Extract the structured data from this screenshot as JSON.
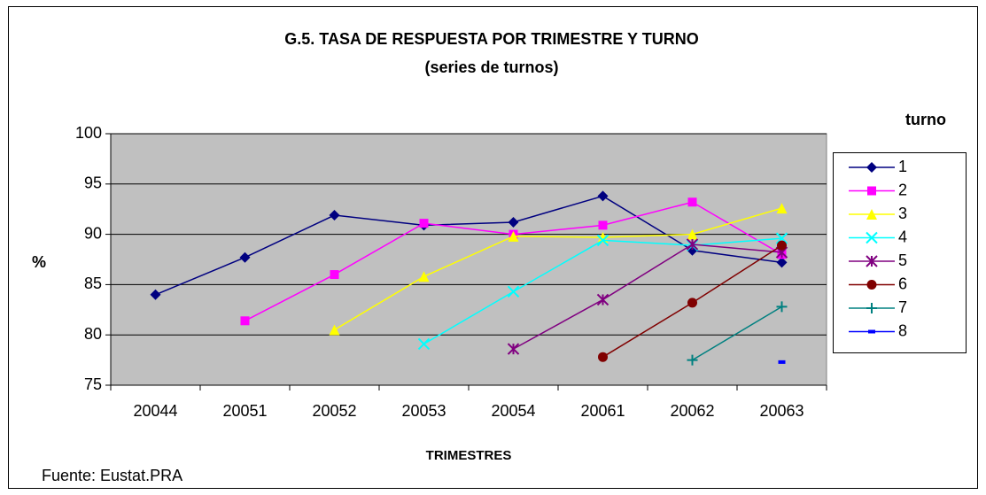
{
  "chart_data": {
    "type": "line",
    "title": "G.5. TASA DE RESPUESTA POR TRIMESTRE Y TURNO",
    "subtitle": "(series de turnos)",
    "y_label": "%",
    "x_label": "TRIMESTRES",
    "legend_title": "turno",
    "source": "Fuente: Eustat.PRA",
    "categories": [
      "20044",
      "20051",
      "20052",
      "20053",
      "20054",
      "20061",
      "20062",
      "20063"
    ],
    "ylim": [
      75,
      100
    ],
    "yticks": [
      75,
      80,
      85,
      90,
      95,
      100
    ],
    "grid": true,
    "legend": "right",
    "series": [
      {
        "name": "1",
        "color": "#000080",
        "marker": "diamond",
        "values": [
          84.0,
          87.7,
          91.9,
          90.9,
          91.2,
          93.8,
          88.4,
          87.2
        ]
      },
      {
        "name": "2",
        "color": "#ff00ff",
        "marker": "square",
        "values": [
          null,
          81.4,
          86.0,
          91.1,
          90.0,
          90.9,
          93.2,
          88.0
        ]
      },
      {
        "name": "3",
        "color": "#ffff00",
        "marker": "triangle",
        "values": [
          null,
          null,
          80.5,
          85.8,
          89.8,
          89.7,
          90.0,
          92.6
        ]
      },
      {
        "name": "4",
        "color": "#00ffff",
        "marker": "x",
        "values": [
          null,
          null,
          null,
          79.1,
          84.3,
          89.4,
          88.9,
          89.6
        ]
      },
      {
        "name": "5",
        "color": "#800080",
        "marker": "star",
        "values": [
          null,
          null,
          null,
          null,
          78.6,
          83.5,
          89.0,
          88.2
        ]
      },
      {
        "name": "6",
        "color": "#800000",
        "marker": "circle",
        "values": [
          null,
          null,
          null,
          null,
          null,
          77.8,
          83.2,
          88.9
        ]
      },
      {
        "name": "7",
        "color": "#008080",
        "marker": "plus",
        "values": [
          null,
          null,
          null,
          null,
          null,
          null,
          77.5,
          82.8
        ]
      },
      {
        "name": "8",
        "color": "#0000ff",
        "marker": "dash",
        "values": [
          null,
          null,
          null,
          null,
          null,
          null,
          null,
          77.3
        ]
      }
    ]
  }
}
